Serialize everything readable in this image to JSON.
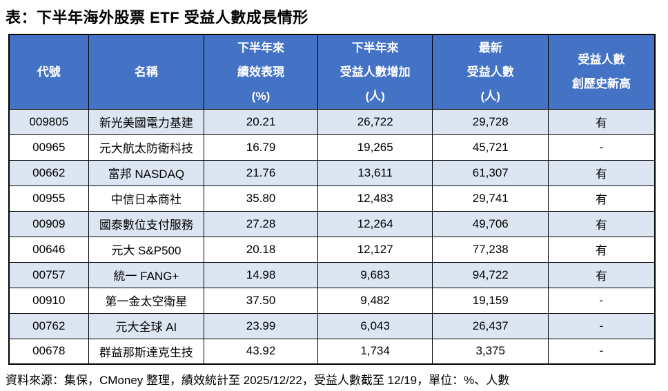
{
  "title": "表：下半年海外股票 ETF 受益人數成長情形",
  "footer": "資料來源：集保，CMoney 整理，績效統計至 2025/12/22，受益人數截至 12/19，單位：%、人數",
  "colors": {
    "header_bg": "#4472C4",
    "header_text": "#FFFFFF",
    "band_bg": "#DCE6F2",
    "row_bg": "#FFFFFF",
    "border": "#000000"
  },
  "chart_data": {
    "type": "table",
    "title": "表：下半年海外股票 ETF 受益人數成長情形",
    "columns": [
      {
        "key": "code",
        "label": "代號",
        "lines": [
          "代號"
        ]
      },
      {
        "key": "name",
        "label": "名稱",
        "lines": [
          "名稱"
        ]
      },
      {
        "key": "perf",
        "label": "下半年來績效表現(%)",
        "lines": [
          "下半年來",
          "績效表現",
          "(%)"
        ]
      },
      {
        "key": "increase",
        "label": "下半年來受益人數增加(人)",
        "lines": [
          "下半年來",
          "受益人數增加",
          "(人)"
        ]
      },
      {
        "key": "latest",
        "label": "最新受益人數(人)",
        "lines": [
          "最新",
          "受益人數",
          "(人)"
        ]
      },
      {
        "key": "record",
        "label": "受益人數創歷史新高",
        "lines": [
          "受益人數",
          "創歷史新高"
        ]
      }
    ],
    "rows": [
      {
        "code": "009805",
        "name": "新光美國電力基建",
        "perf": "20.21",
        "increase": "26,722",
        "latest": "29,728",
        "record": "有"
      },
      {
        "code": "00965",
        "name": "元大航太防衛科技",
        "perf": "16.79",
        "increase": "19,265",
        "latest": "45,721",
        "record": "-"
      },
      {
        "code": "00662",
        "name": "富邦 NASDAQ",
        "perf": "21.76",
        "increase": "13,611",
        "latest": "61,307",
        "record": "有"
      },
      {
        "code": "00955",
        "name": "中信日本商社",
        "perf": "35.80",
        "increase": "12,483",
        "latest": "29,741",
        "record": "有"
      },
      {
        "code": "00909",
        "name": "國泰數位支付服務",
        "perf": "27.28",
        "increase": "12,264",
        "latest": "49,706",
        "record": "有"
      },
      {
        "code": "00646",
        "name": "元大 S&P500",
        "perf": "20.18",
        "increase": "12,127",
        "latest": "77,238",
        "record": "有"
      },
      {
        "code": "00757",
        "name": "統一 FANG+",
        "perf": "14.98",
        "increase": "9,683",
        "latest": "94,722",
        "record": "有"
      },
      {
        "code": "00910",
        "name": "第一金太空衛星",
        "perf": "37.50",
        "increase": "9,482",
        "latest": "19,159",
        "record": "-"
      },
      {
        "code": "00762",
        "name": "元大全球 AI",
        "perf": "23.99",
        "increase": "6,043",
        "latest": "26,437",
        "record": "-"
      },
      {
        "code": "00678",
        "name": "群益那斯達克生技",
        "perf": "43.92",
        "increase": "1,734",
        "latest": "3,375",
        "record": "-"
      }
    ]
  }
}
